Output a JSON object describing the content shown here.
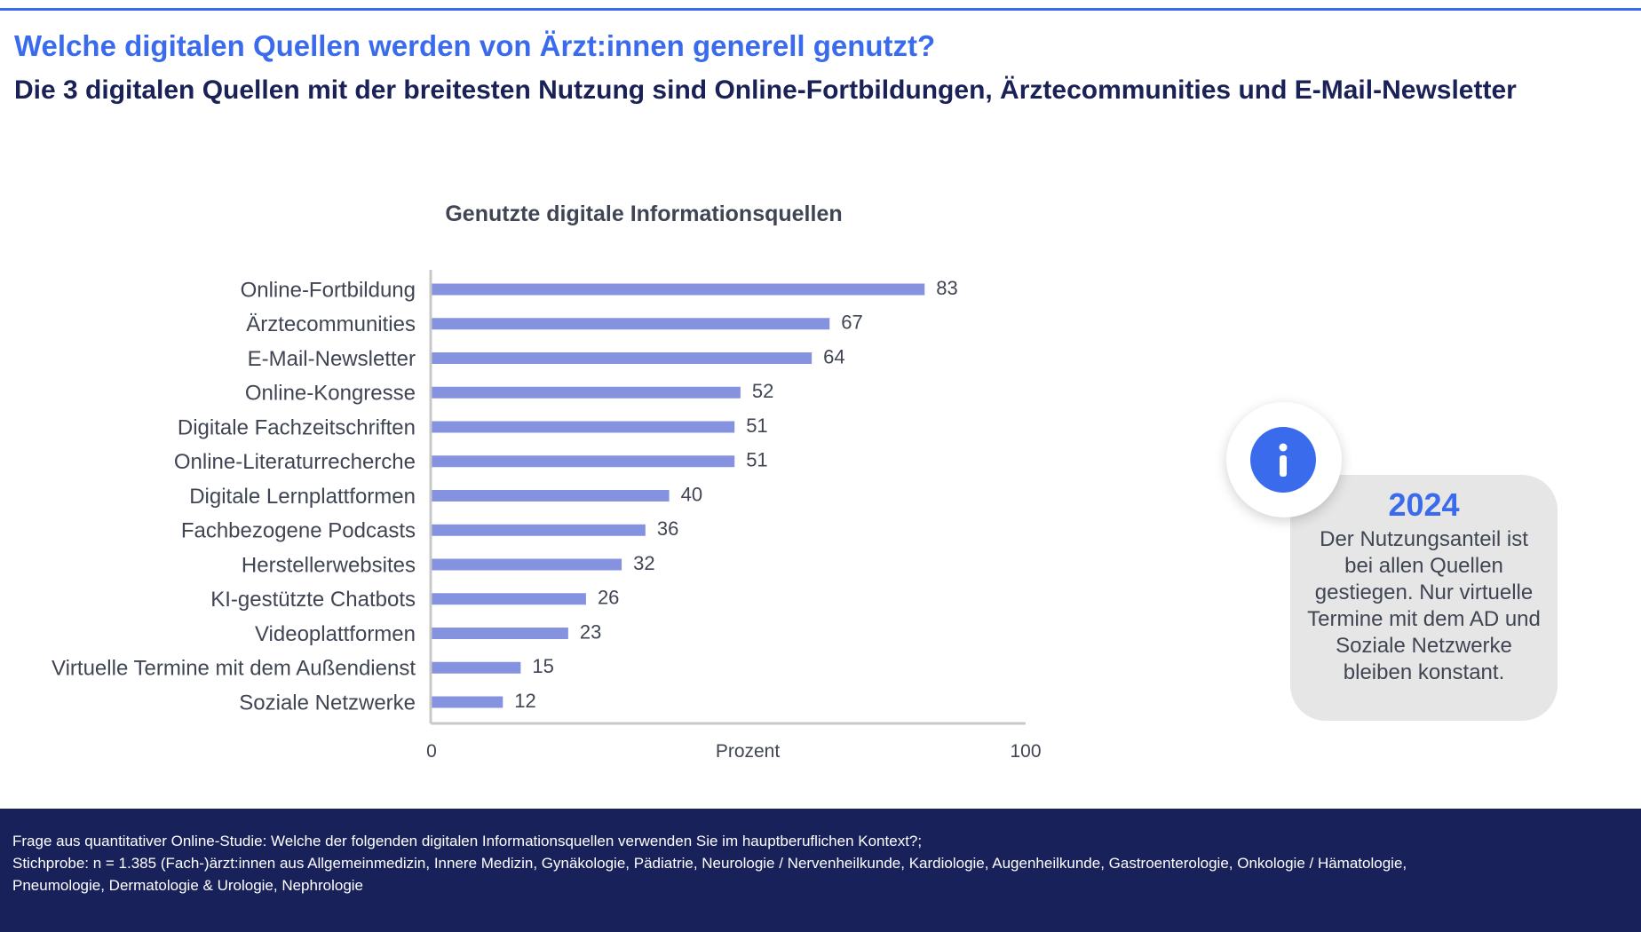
{
  "title": "Welche digitalen Quellen werden von Ärzt:innen generell genutzt?",
  "subtitle": "Die 3 digitalen Quellen mit der breitesten Nutzung sind Online-Fortbildungen, Ärztecommunities und E-Mail-Newsletter",
  "chart_data": {
    "type": "bar",
    "orientation": "horizontal",
    "title": "Genutzte digitale Informationsquellen",
    "xlabel": "Prozent",
    "ylabel": "",
    "xlim": [
      0,
      100
    ],
    "x_ticks": [
      "0",
      "100"
    ],
    "grid": false,
    "categories": [
      "Online-Fortbildung",
      "Ärztecommunities",
      "E-Mail-Newsletter",
      "Online-Kongresse",
      "Digitale Fachzeitschriften",
      "Online-Literaturrecherche",
      "Digitale Lernplattformen",
      "Fachbezogene Podcasts",
      "Herstellerwebsites",
      "KI-gestützte Chatbots",
      "Videoplattformen",
      "Virtuelle Termine mit dem Außendienst",
      "Soziale Netzwerke"
    ],
    "values": [
      83,
      67,
      64,
      52,
      51,
      51,
      40,
      36,
      32,
      26,
      23,
      15,
      12
    ],
    "bar_color": "#8592e0"
  },
  "info": {
    "year": "2024",
    "text": "Der Nutzungsanteil ist bei allen Quellen gestiegen. Nur virtuelle Termine mit dem AD und Soziale Netzwerke bleiben konstant.",
    "icon": "info-icon"
  },
  "footer": {
    "line1": "Frage aus quantitativer Online-Studie: Welche der folgenden digitalen Informationsquellen verwenden Sie im hauptberuflichen Kontext?;",
    "line2": "Stichprobe: n = 1.385 (Fach-)ärzt:innen aus Allgemeinmedizin, Innere Medizin, Gynäkologie, Pädiatrie, Neurologie / Nervenheilkunde, Kardiologie, Augenheilkunde, Gastroenterologie, Onkologie / Hämatologie,",
    "line3": "Pneumologie, Dermatologie & Urologie, Nephrologie"
  },
  "colors": {
    "accent": "#3b6bed",
    "navy": "#1a2156",
    "footer_bg": "#182159",
    "bar": "#8592e0"
  }
}
